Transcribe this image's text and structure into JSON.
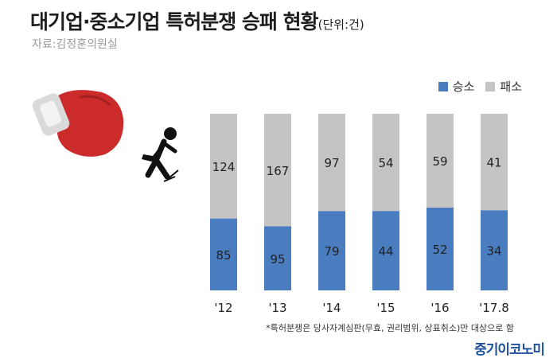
{
  "header": {
    "title": "대기업·중소기업 특허분쟁 승패 현황",
    "unit": "(단위:건)",
    "source": "자료:김정훈의원실"
  },
  "footnote": "*특허분쟁은 당사자계심판(무효, 권리범위, 상표취소)만 대상으로 함",
  "brand": "중기이코노미",
  "colors": {
    "win": "#4a7cc0",
    "loss": "#c4c4c4",
    "glove": "#cc2b2b",
    "glove_cuff": "#dadada",
    "figure": "#111111"
  },
  "icons": [
    "boxing-glove-icon",
    "falling-person-icon"
  ],
  "chart_data": {
    "type": "bar",
    "stacked": true,
    "categories": [
      "'12",
      "'13",
      "'14",
      "'15",
      "'16",
      "'17.8"
    ],
    "series": [
      {
        "name": "승소",
        "values": [
          85,
          95,
          79,
          44,
          52,
          34
        ]
      },
      {
        "name": "패소",
        "values": [
          124,
          167,
          97,
          54,
          59,
          41
        ]
      }
    ],
    "normalized": true,
    "legend_position": "top-right",
    "grid": false,
    "title": "대기업·중소기업 특허분쟁 승패 현황",
    "xlabel": "",
    "ylabel": ""
  }
}
